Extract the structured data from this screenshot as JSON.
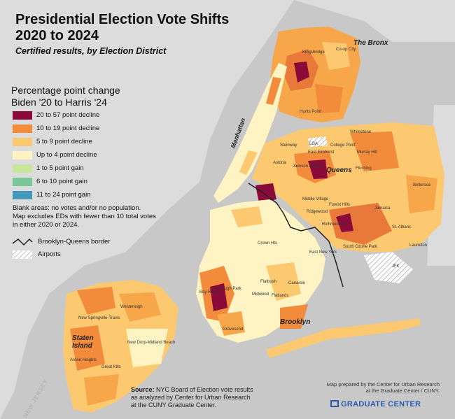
{
  "header": {
    "title_line1": "Presidential Election Vote Shifts",
    "title_line2": "2020 to 2024",
    "subtitle": "Certified results, by Election District"
  },
  "legend": {
    "title_line1": "Percentage point change",
    "title_line2": "Biden '20 to Harris '24",
    "classes": [
      {
        "label": "20 to 57 point decline",
        "color": "#8b0a3a"
      },
      {
        "label": "10 to 19 point decline",
        "color": "#f28c3c"
      },
      {
        "label": "5 to 9 point decline",
        "color": "#fcc870"
      },
      {
        "label": "Up to 4 point decline",
        "color": "#fdf3c3"
      },
      {
        "label": "1 to 5 point gain",
        "color": "#c7e89a"
      },
      {
        "label": "6 to 10 point gain",
        "color": "#7cc799"
      },
      {
        "label": "11 to 24 point gain",
        "color": "#4499bb"
      }
    ],
    "note_line1": "Blank areas: no votes and/or no population.",
    "note_line2": "Map excludes EDs with fewer than 10 total votes",
    "note_line3": "in either 2020 or 2024.",
    "border_label": "Brooklyn-Queens border",
    "airports_label": "Airports"
  },
  "boroughs": {
    "manhattan": "Manhattan",
    "queens": "Queens",
    "brooklyn": "Brooklyn",
    "bronx": "The Bronx",
    "staten_line1": "Staten",
    "staten_line2": "Island"
  },
  "neighborhoods": [
    "Kingsbridge",
    "Co-op City",
    "Hunts Point",
    "Whitestone",
    "Steinway",
    "LGA",
    "Astoria",
    "College Point",
    "Murray Hill",
    "East Elmhurst",
    "Jackson Heights",
    "Flushing",
    "Ridgewood",
    "Middle Village",
    "Forest Hills",
    "Bellerose",
    "Richmond Hill",
    "Jamaica",
    "St. Albans",
    "South Ozone Park",
    "Laurelton",
    "Crown Hts",
    "East New York",
    "Canarsie",
    "Flatlands",
    "Midwood",
    "Flatbush",
    "Bay Ridge",
    "Borough Park",
    "Gravesend",
    "JFK",
    "Westerleigh",
    "New Springville-Travis",
    "Great Kills",
    "Arden Heights",
    "New Dorp-Midland Beach"
  ],
  "nj_label": "NEW JERSEY",
  "source": {
    "label": "Source:",
    "line1": " NYC Board of Election vote results",
    "line2": "as analyzed by Center for Urban Research",
    "line3": "at the CUNY Graduate Center."
  },
  "credit": {
    "line1": "Map prepared by the Center for Urban Research",
    "line2": "at the Graduate Center / CUNY.",
    "logo_text": "GRADUATE CENTER"
  }
}
